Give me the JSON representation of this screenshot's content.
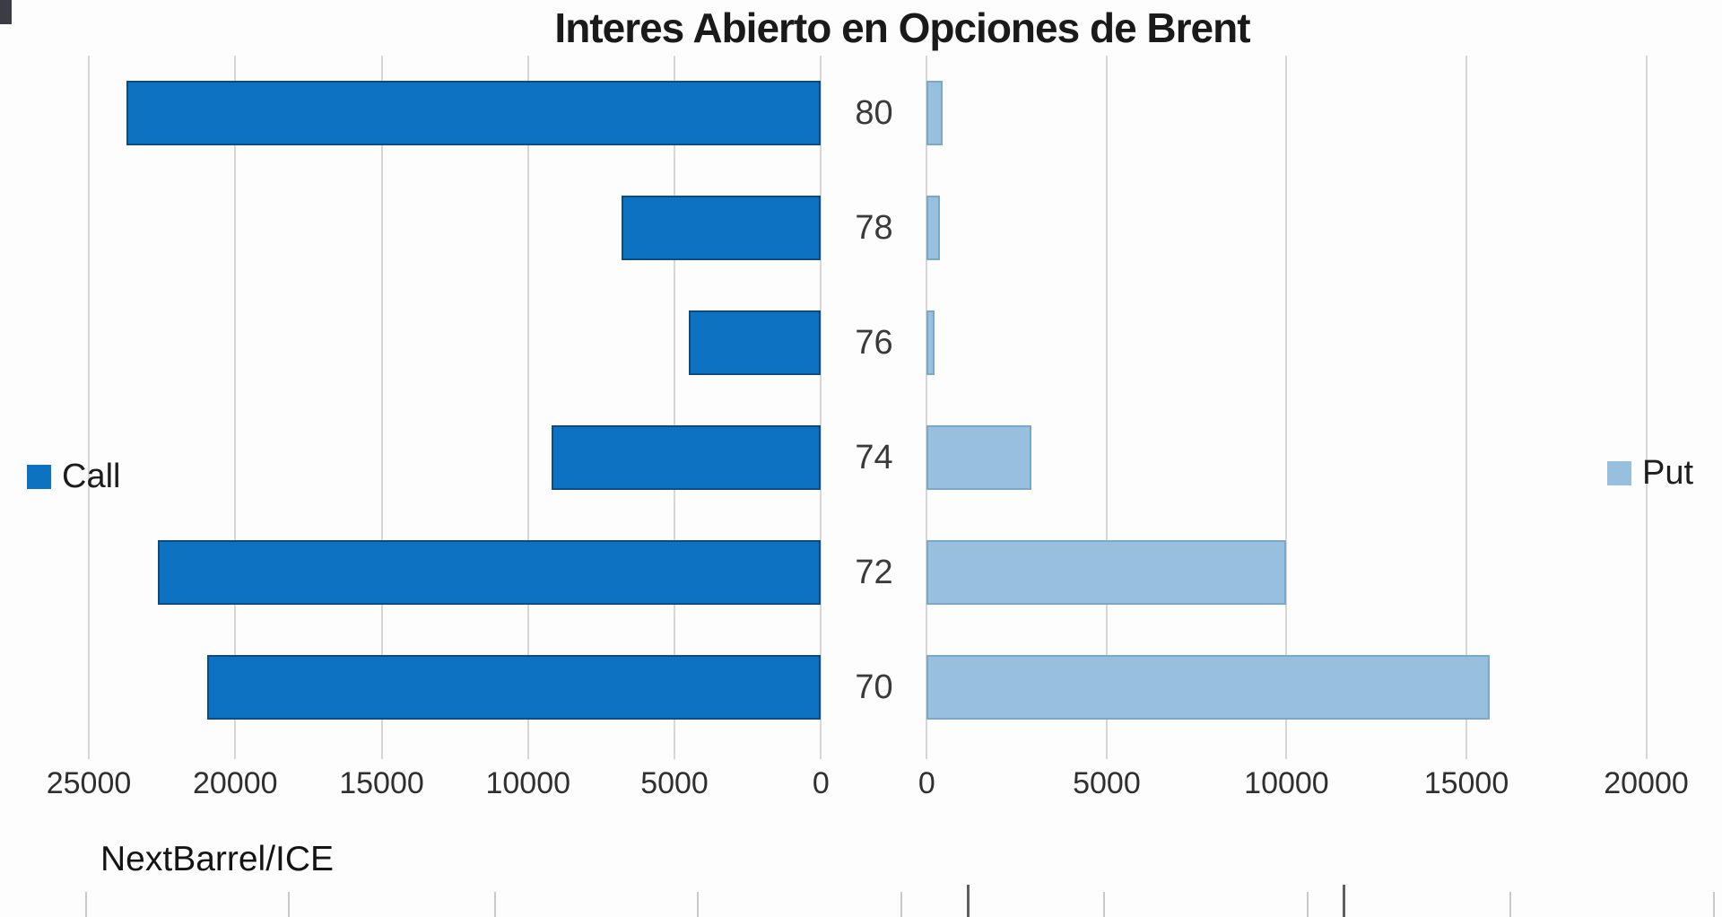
{
  "title": "Interes Abierto en Opciones de Brent",
  "source_label": "NextBarrel/ICE",
  "legend": {
    "call": "Call",
    "put": "Put"
  },
  "colors": {
    "call": "#0e72c2",
    "put": "#96c0dd",
    "gridline": "#d6d6d6",
    "title_text": "#1a1a1a",
    "axis_text": "#2f2f2f"
  },
  "chart_data": {
    "type": "bar",
    "orientation": "horizontal",
    "layout": "tornado (two mirrored horizontal bar panels sharing center category axis)",
    "title": "Interes Abierto en Opciones de Brent",
    "categories": [
      "80",
      "78",
      "76",
      "74",
      "72",
      "70"
    ],
    "category_axis_label": "",
    "grid": true,
    "series": [
      {
        "name": "Call",
        "side": "left",
        "color": "#0e72c2",
        "values": [
          23700,
          6800,
          4500,
          9200,
          22650,
          20950
        ],
        "axis": {
          "min": 0,
          "max": 25000,
          "reversed": true,
          "ticks": [
            "25000",
            "20000",
            "15000",
            "10000",
            "5000",
            "0"
          ],
          "tick_values": [
            25000,
            20000,
            15000,
            10000,
            5000,
            0
          ]
        }
      },
      {
        "name": "Put",
        "side": "right",
        "color": "#96c0dd",
        "values": [
          430,
          365,
          225,
          2900,
          10000,
          15650
        ],
        "axis": {
          "min": 0,
          "max": 20000,
          "reversed": false,
          "ticks": [
            "0",
            "5000",
            "10000",
            "15000",
            "20000"
          ],
          "tick_values": [
            0,
            5000,
            10000,
            15000,
            20000
          ]
        }
      }
    ],
    "legend_position": "left and right mid-chart",
    "source": "NextBarrel/ICE"
  },
  "bottom_ruler": {
    "note": "top edge of a second cropped chart",
    "light_tick_x": [
      95,
      321,
      551,
      777,
      1004,
      1230,
      1457,
      1683,
      1910
    ],
    "dark_tick_x": [
      1078,
      1497
    ]
  }
}
